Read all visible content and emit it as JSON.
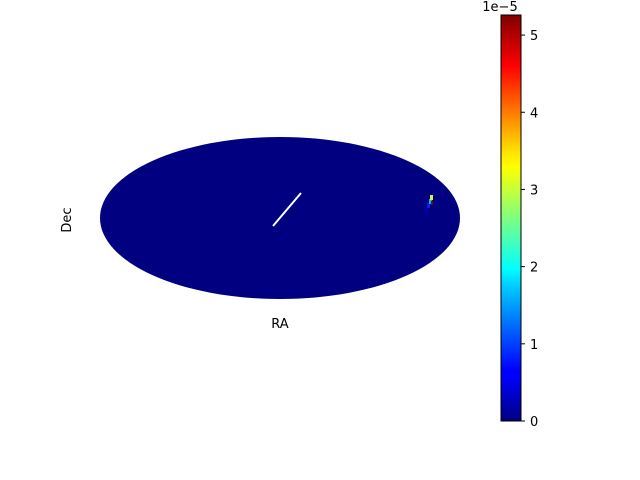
{
  "chart_data": {
    "type": "heatmap",
    "projection": "mollweide",
    "xlabel": "RA",
    "ylabel": "Dec",
    "background_value": 0,
    "features": {
      "line_color": "#ffffff",
      "hotspot_values": [
        2e-06,
        8e-06,
        1.6e-05,
        3e-05,
        5.26e-05
      ]
    },
    "colorbar": {
      "colormap": "jet",
      "vmin": 0,
      "vmax": 5.26e-05,
      "ticks": [
        0,
        1e-05,
        2e-05,
        3e-05,
        4e-05,
        5e-05
      ],
      "tick_labels": [
        "0",
        "1",
        "2",
        "3",
        "4",
        "5"
      ],
      "offset_text": "1e−5"
    }
  }
}
